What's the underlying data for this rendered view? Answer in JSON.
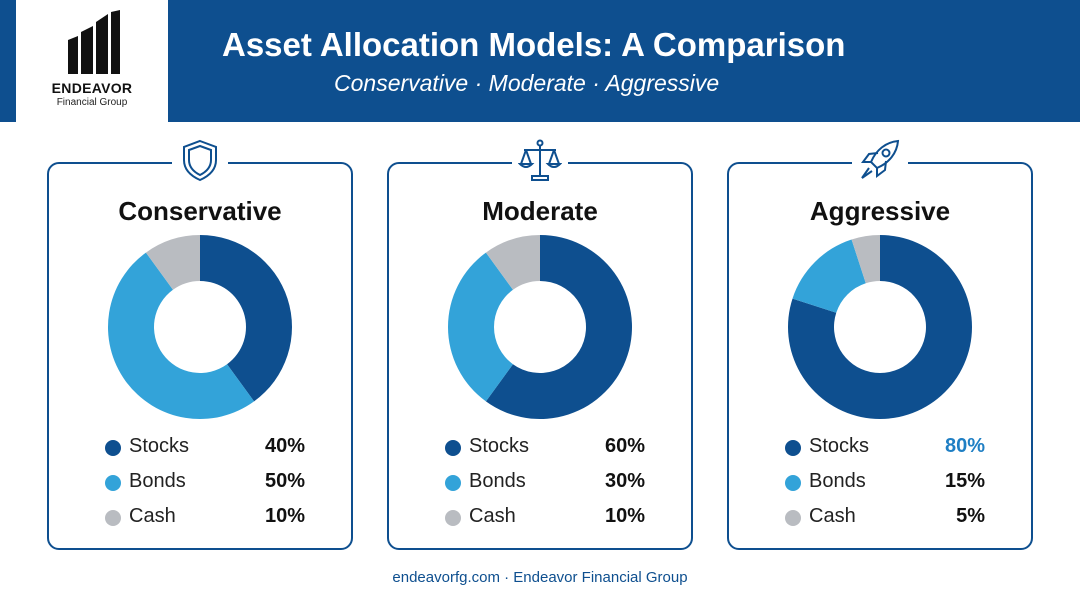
{
  "header": {
    "title": "Asset Allocation Models: A Comparison",
    "subtitle": "Conservative · Moderate · Aggressive",
    "logo": {
      "name": "ENDEAVOR",
      "tagline": "Financial Group",
      "icon": "building-icon"
    }
  },
  "colors": {
    "brand": "#0e4f8f",
    "stocks": "#0e4f8f",
    "bonds": "#33a3d9",
    "cash": "#b9bcc1",
    "highlight": "#1f7fc4"
  },
  "footer": {
    "text": "endeavorfg.com · Endeavor Financial Group"
  },
  "chart_data": [
    {
      "type": "pie",
      "title": "Conservative",
      "icon": "shield-icon",
      "categories": [
        "Stocks",
        "Bonds",
        "Cash"
      ],
      "values": [
        40,
        50,
        10
      ],
      "labels": [
        "40%",
        "50%",
        "10%"
      ],
      "legend": "below"
    },
    {
      "type": "pie",
      "title": "Moderate",
      "icon": "scales-icon",
      "categories": [
        "Stocks",
        "Bonds",
        "Cash"
      ],
      "values": [
        60,
        30,
        10
      ],
      "labels": [
        "60%",
        "30%",
        "10%"
      ],
      "legend": "below"
    },
    {
      "type": "pie",
      "title": "Aggressive",
      "icon": "rocket-icon",
      "categories": [
        "Stocks",
        "Bonds",
        "Cash"
      ],
      "values": [
        80,
        15,
        5
      ],
      "labels": [
        "80%",
        "15%",
        "5%"
      ],
      "legend": "below",
      "highlight": "Stocks"
    }
  ]
}
